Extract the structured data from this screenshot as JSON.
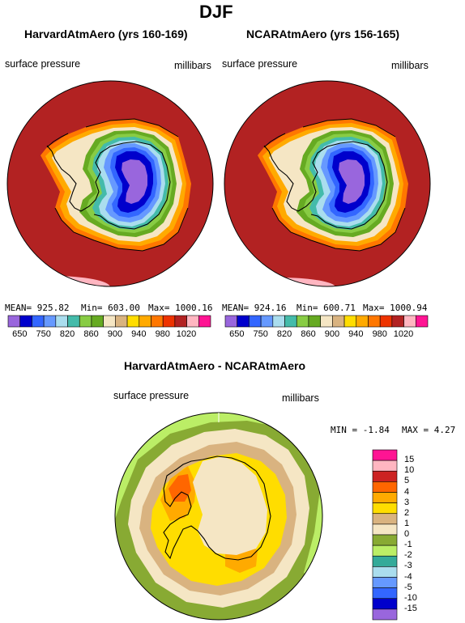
{
  "page": {
    "title": "DJF"
  },
  "panels": [
    {
      "title": "HarvardAtmAero (yrs 160-169)",
      "field": "surface pressure",
      "units": "millibars",
      "mean_text": "MEAN= 925.82",
      "min_text": "Min= 603.00",
      "max_text": "Max= 1000.16"
    },
    {
      "title": "NCARAtmAero (yrs 156-165)",
      "field": "surface pressure",
      "units": "millibars",
      "mean_text": "MEAN= 924.16",
      "min_text": "Min= 600.71",
      "max_text": "Max= 1000.94"
    },
    {
      "title": "HarvardAtmAero - NCARAtmAero",
      "field": "surface pressure",
      "units": "millibars",
      "min_text": "MIN =   -1.84",
      "max_text": "MAX =    4.27"
    }
  ],
  "colorbar_top": {
    "tick_labels": [
      "650",
      "750",
      "820",
      "860",
      "900",
      "940",
      "980",
      "1020"
    ],
    "colors": [
      "#9966dd",
      "#0000cc",
      "#3366ff",
      "#6699ff",
      "#aaddee",
      "#44bbaa",
      "#88cc44",
      "#66aa22",
      "#f5e6c4",
      "#d9b380",
      "#ffdd00",
      "#ffaa00",
      "#ff7700",
      "#ee3300",
      "#b22222",
      "#ffb6c1",
      "#ff1493"
    ]
  },
  "colorbar_diff": {
    "tick_labels": [
      "15",
      "10",
      "5",
      "4",
      "3",
      "2",
      "1",
      "0",
      "-1",
      "-2",
      "-3",
      "-4",
      "-5",
      "-10",
      "-15"
    ],
    "colors": [
      "#ff1493",
      "#ffb6c1",
      "#cc2222",
      "#ff6600",
      "#ffaa00",
      "#ffdd00",
      "#d9b380",
      "#f5e6c4",
      "#88aa33",
      "#bbee66",
      "#33aa99",
      "#aaddee",
      "#6699ff",
      "#3366ff",
      "#0000cc",
      "#9966dd"
    ]
  },
  "chart_data": [
    {
      "type": "heatmap",
      "title": "HarvardAtmAero (yrs 160-169)",
      "subtitle": "surface pressure",
      "units": "millibars",
      "projection": "south polar stereographic",
      "mean": 925.82,
      "min": 603.0,
      "max": 1000.16
    },
    {
      "type": "heatmap",
      "title": "NCARAtmAero (yrs 156-165)",
      "subtitle": "surface pressure",
      "units": "millibars",
      "projection": "south polar stereographic",
      "mean": 924.16,
      "min": 600.71,
      "max": 1000.94
    },
    {
      "type": "heatmap",
      "title": "HarvardAtmAero - NCARAtmAero",
      "subtitle": "surface pressure",
      "units": "millibars",
      "projection": "south polar stereographic",
      "min": -1.84,
      "max": 4.27
    }
  ]
}
